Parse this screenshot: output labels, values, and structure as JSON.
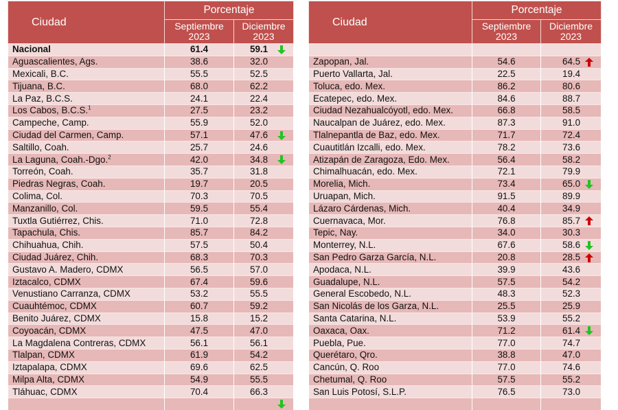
{
  "headers": {
    "city": "Ciudad",
    "percentage": "Porcentaje",
    "sep_line1": "Septiembre",
    "sep_line2": "2023",
    "dec_line1": "Diciembre",
    "dec_line2": "2023"
  },
  "colors": {
    "header_bg": "#c0504d",
    "row_light": "#f2dcdb",
    "row_dark": "#e6b8b7",
    "arrow_down": "#22c322",
    "arrow_up": "#cc0000"
  },
  "left_table": [
    {
      "city": "Nacional",
      "sup": "",
      "sep": "61.4",
      "dec": "59.1",
      "trend": "down",
      "bold": true
    },
    {
      "city": "Aguascalientes, Ags.",
      "sup": "",
      "sep": "38.6",
      "dec": "32.0",
      "trend": ""
    },
    {
      "city": "Mexicali, B.C.",
      "sup": "",
      "sep": "55.5",
      "dec": "52.5",
      "trend": ""
    },
    {
      "city": "Tijuana, B.C.",
      "sup": "",
      "sep": "68.0",
      "dec": "62.2",
      "trend": ""
    },
    {
      "city": "La Paz, B.C.S.",
      "sup": "",
      "sep": "24.1",
      "dec": "22.4",
      "trend": ""
    },
    {
      "city": "Los Cabos, B.C.S.",
      "sup": "1",
      "sep": "27.5",
      "dec": "23.2",
      "trend": ""
    },
    {
      "city": "Campeche, Camp.",
      "sup": "",
      "sep": "55.9",
      "dec": "52.0",
      "trend": ""
    },
    {
      "city": "Ciudad del Carmen, Camp.",
      "sup": "",
      "sep": "57.1",
      "dec": "47.6",
      "trend": "down"
    },
    {
      "city": "Saltillo, Coah.",
      "sup": "",
      "sep": "25.7",
      "dec": "24.6",
      "trend": ""
    },
    {
      "city": "La Laguna, Coah.-Dgo.",
      "sup": "2",
      "sep": "42.0",
      "dec": "34.8",
      "trend": "down"
    },
    {
      "city": "Torreón, Coah.",
      "sup": "",
      "sep": "35.7",
      "dec": "31.8",
      "trend": ""
    },
    {
      "city": "Piedras Negras, Coah.",
      "sup": "",
      "sep": "19.7",
      "dec": "20.5",
      "trend": ""
    },
    {
      "city": "Colima, Col.",
      "sup": "",
      "sep": "70.3",
      "dec": "70.5",
      "trend": ""
    },
    {
      "city": "Manzanillo, Col.",
      "sup": "",
      "sep": "59.5",
      "dec": "55.4",
      "trend": ""
    },
    {
      "city": "Tuxtla Gutiérrez, Chis.",
      "sup": "",
      "sep": "71.0",
      "dec": "72.8",
      "trend": ""
    },
    {
      "city": "Tapachula, Chis.",
      "sup": "",
      "sep": "85.7",
      "dec": "84.2",
      "trend": ""
    },
    {
      "city": "Chihuahua, Chih.",
      "sup": "",
      "sep": "57.5",
      "dec": "50.4",
      "trend": ""
    },
    {
      "city": "Ciudad Juárez, Chih.",
      "sup": "",
      "sep": "68.3",
      "dec": "70.3",
      "trend": ""
    },
    {
      "city": "Gustavo A. Madero, CDMX",
      "sup": "",
      "sep": "56.5",
      "dec": "57.0",
      "trend": ""
    },
    {
      "city": "Iztacalco, CDMX",
      "sup": "",
      "sep": "67.4",
      "dec": "59.6",
      "trend": ""
    },
    {
      "city": "Venustiano Carranza, CDMX",
      "sup": "",
      "sep": "53.2",
      "dec": "55.5",
      "trend": ""
    },
    {
      "city": "Cuauhtémoc, CDMX",
      "sup": "",
      "sep": "60.7",
      "dec": "59.2",
      "trend": ""
    },
    {
      "city": "Benito Juárez, CDMX",
      "sup": "",
      "sep": "15.8",
      "dec": "15.2",
      "trend": ""
    },
    {
      "city": "Coyoacán, CDMX",
      "sup": "",
      "sep": "47.5",
      "dec": "47.0",
      "trend": ""
    },
    {
      "city": "La Magdalena Contreras, CDMX",
      "sup": "",
      "sep": "56.1",
      "dec": "56.1",
      "trend": ""
    },
    {
      "city": "Tlalpan, CDMX",
      "sup": "",
      "sep": "61.9",
      "dec": "54.2",
      "trend": ""
    },
    {
      "city": "Iztapalapa, CDMX",
      "sup": "",
      "sep": "69.6",
      "dec": "62.5",
      "trend": ""
    },
    {
      "city": "Milpa Alta, CDMX",
      "sup": "",
      "sep": "54.9",
      "dec": "55.5",
      "trend": ""
    },
    {
      "city": "Tláhuac, CDMX",
      "sup": "",
      "sep": "70.4",
      "dec": "66.3",
      "trend": ""
    },
    {
      "city": "",
      "sup": "",
      "sep": "",
      "dec": "",
      "trend": "down"
    }
  ],
  "right_table": [
    {
      "city": "",
      "sup": "",
      "sep": "",
      "dec": "",
      "trend": ""
    },
    {
      "city": "Zapopan, Jal.",
      "sup": "",
      "sep": "54.6",
      "dec": "64.5",
      "trend": "up"
    },
    {
      "city": "Puerto Vallarta, Jal.",
      "sup": "",
      "sep": "22.5",
      "dec": "19.4",
      "trend": ""
    },
    {
      "city": "Toluca, edo. Mex.",
      "sup": "",
      "sep": "86.2",
      "dec": "80.6",
      "trend": ""
    },
    {
      "city": "Ecatepec, edo. Mex.",
      "sup": "",
      "sep": "84.6",
      "dec": "88.7",
      "trend": ""
    },
    {
      "city": "Ciudad Nezahualcóyotl, edo. Mex.",
      "sup": "",
      "sep": "66.8",
      "dec": "58.5",
      "trend": ""
    },
    {
      "city": "Naucalpan de Juárez, edo. Mex.",
      "sup": "",
      "sep": "87.3",
      "dec": "91.0",
      "trend": ""
    },
    {
      "city": "Tlalnepantla de Baz, edo. Mex.",
      "sup": "",
      "sep": "71.7",
      "dec": "72.4",
      "trend": ""
    },
    {
      "city": "Cuautitlán Izcalli, edo. Mex.",
      "sup": "",
      "sep": "78.2",
      "dec": "73.6",
      "trend": ""
    },
    {
      "city": "Atizapán de Zaragoza, Edo. Mex.",
      "sup": "",
      "sep": "56.4",
      "dec": "58.2",
      "trend": ""
    },
    {
      "city": "Chimalhuacán, edo. Mex.",
      "sup": "",
      "sep": "72.1",
      "dec": "79.9",
      "trend": ""
    },
    {
      "city": "Morelia, Mich.",
      "sup": "",
      "sep": "73.4",
      "dec": "65.0",
      "trend": "down"
    },
    {
      "city": "Uruapan, Mich.",
      "sup": "",
      "sep": "91.5",
      "dec": "89.9",
      "trend": ""
    },
    {
      "city": "Lázaro Cárdenas, Mich.",
      "sup": "",
      "sep": "40.4",
      "dec": "34.9",
      "trend": ""
    },
    {
      "city": "Cuernavaca, Mor.",
      "sup": "",
      "sep": "76.8",
      "dec": "85.7",
      "trend": "up"
    },
    {
      "city": "Tepic, Nay.",
      "sup": "",
      "sep": "34.0",
      "dec": "30.3",
      "trend": ""
    },
    {
      "city": "Monterrey, N.L.",
      "sup": "",
      "sep": "67.6",
      "dec": "58.6",
      "trend": "down"
    },
    {
      "city": "San Pedro Garza García, N.L.",
      "sup": "",
      "sep": "20.8",
      "dec": "28.5",
      "trend": "up"
    },
    {
      "city": "Apodaca, N.L.",
      "sup": "",
      "sep": "39.9",
      "dec": "43.6",
      "trend": ""
    },
    {
      "city": "Guadalupe, N.L.",
      "sup": "",
      "sep": "57.5",
      "dec": "54.2",
      "trend": ""
    },
    {
      "city": "General Escobedo, N.L.",
      "sup": "",
      "sep": "48.3",
      "dec": "52.3",
      "trend": ""
    },
    {
      "city": "San Nicolás de los Garza, N.L.",
      "sup": "",
      "sep": "25.5",
      "dec": "25.9",
      "trend": ""
    },
    {
      "city": "Santa Catarina, N.L.",
      "sup": "",
      "sep": "53.9",
      "dec": "55.2",
      "trend": ""
    },
    {
      "city": "Oaxaca, Oax.",
      "sup": "",
      "sep": "71.2",
      "dec": "61.4",
      "trend": "down"
    },
    {
      "city": "Puebla, Pue.",
      "sup": "",
      "sep": "77.0",
      "dec": "74.7",
      "trend": ""
    },
    {
      "city": "Querétaro, Qro.",
      "sup": "",
      "sep": "38.8",
      "dec": "47.0",
      "trend": ""
    },
    {
      "city": "Cancún, Q. Roo",
      "sup": "",
      "sep": "77.0",
      "dec": "74.6",
      "trend": ""
    },
    {
      "city": "Chetumal, Q. Roo",
      "sup": "",
      "sep": "57.5",
      "dec": "55.2",
      "trend": ""
    },
    {
      "city": "San Luis Potosí, S.L.P.",
      "sup": "",
      "sep": "76.5",
      "dec": "73.0",
      "trend": ""
    },
    {
      "city": "",
      "sup": "",
      "sep": "",
      "dec": "",
      "trend": ""
    }
  ]
}
